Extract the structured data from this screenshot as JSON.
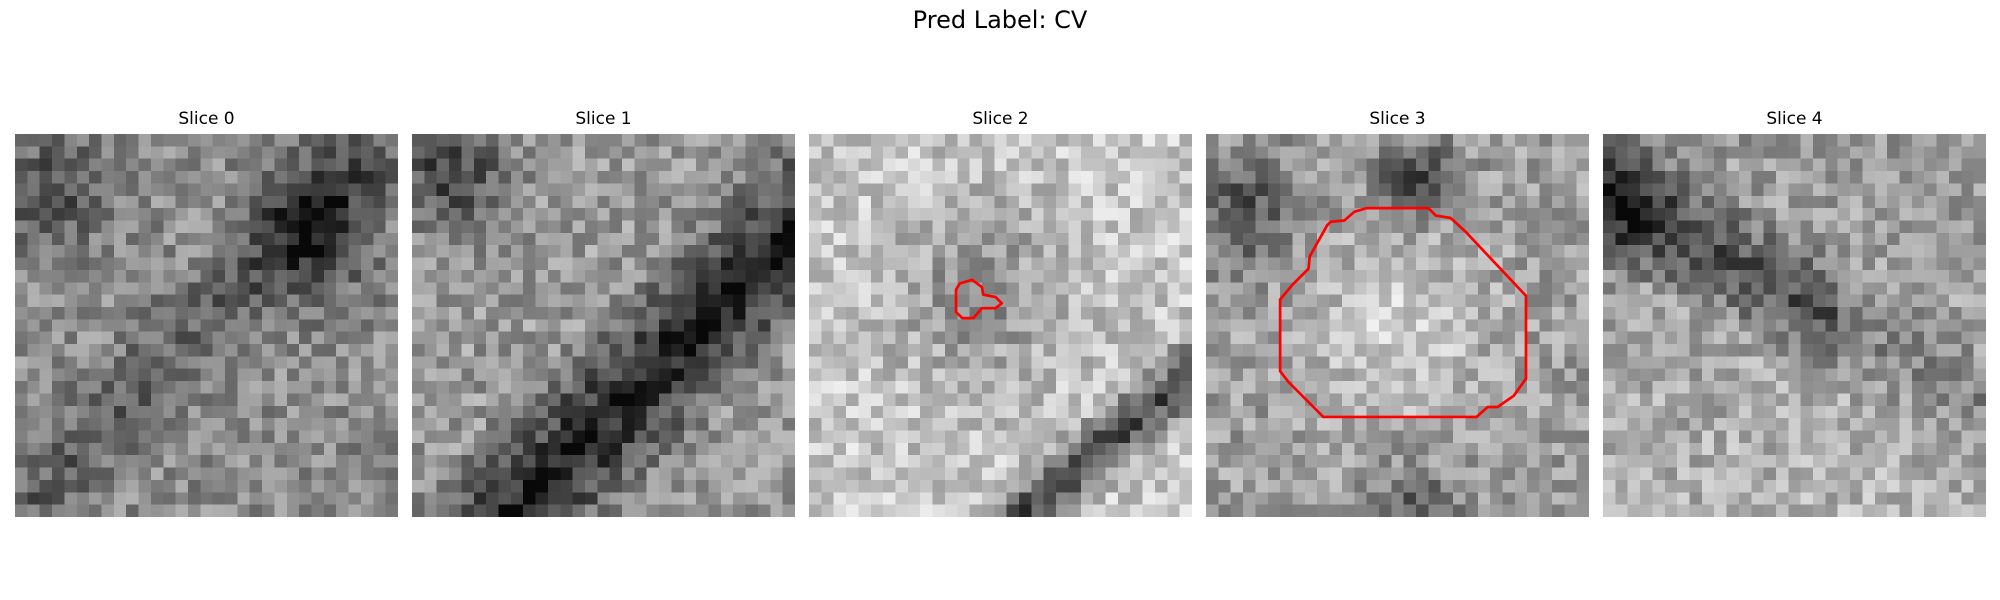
{
  "figure": {
    "title": "Pred Label: CV"
  },
  "panels": [
    {
      "title": "Slice 0",
      "seed": 11,
      "contour": null
    },
    {
      "title": "Slice 1",
      "seed": 23,
      "contour": null
    },
    {
      "title": "Slice 2",
      "seed": 37,
      "contour": "small-loop"
    },
    {
      "title": "Slice 3",
      "seed": 41,
      "contour": "octagon"
    },
    {
      "title": "Slice 4",
      "seed": 53,
      "contour": null
    }
  ],
  "colors": {
    "contour": "#ff0000",
    "background": "#ffffff"
  },
  "image": {
    "grid": 31,
    "colormap": "gray"
  }
}
